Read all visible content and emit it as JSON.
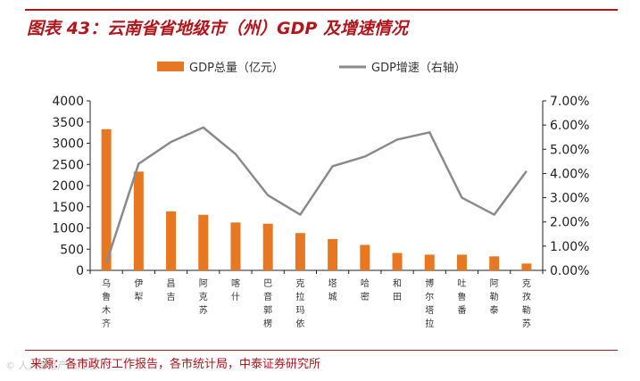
{
  "title": "图表 43：云南省省地级市（州）GDP 及增速情况",
  "source": "来源：各市政府工作报告，各市统计局，中泰证券研究所",
  "watermark": "© 人人都是产品经理",
  "colors": {
    "bar": "#e87722",
    "line": "#8a8a8a",
    "accent": "#b3151c",
    "axis": "#222222"
  },
  "chart_data": {
    "type": "bar+line",
    "categories": [
      "乌鲁木齐",
      "伊犁",
      "昌吉",
      "阿克苏",
      "喀什",
      "巴音郭楞",
      "克拉玛依",
      "塔城",
      "哈密",
      "和田",
      "博尔塔拉",
      "吐鲁番",
      "阿勒泰",
      "克孜勒苏"
    ],
    "series": [
      {
        "name": "GDP总量（亿元）",
        "type": "bar",
        "axis": "left",
        "values": [
          3330,
          2330,
          1390,
          1310,
          1130,
          1100,
          880,
          740,
          600,
          410,
          370,
          370,
          330,
          160
        ]
      },
      {
        "name": "GDP增速（右轴）",
        "type": "line",
        "axis": "right",
        "values": [
          0.3,
          4.4,
          5.3,
          5.9,
          4.8,
          3.1,
          2.3,
          4.3,
          4.7,
          5.4,
          5.7,
          3.0,
          2.3,
          4.1
        ]
      }
    ],
    "ylim_left": [
      0,
      4000
    ],
    "yticks_left": [
      "0",
      "500",
      "1000",
      "1500",
      "2000",
      "2500",
      "3000",
      "3500",
      "4000"
    ],
    "ylim_right": [
      0,
      7
    ],
    "yticks_right": [
      "0.00%",
      "1.00%",
      "2.00%",
      "3.00%",
      "4.00%",
      "5.00%",
      "6.00%",
      "7.00%"
    ],
    "legend": [
      "GDP总量（亿元）",
      "GDP增速（右轴）"
    ],
    "legend_position": "top-center",
    "grid": false
  }
}
